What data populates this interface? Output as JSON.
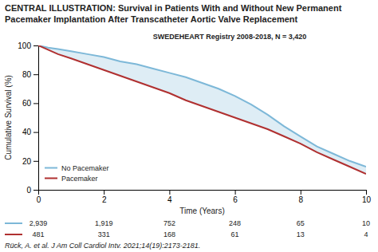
{
  "chart_data": {
    "type": "line",
    "title": "CENTRAL ILLUSTRATION: Survival in Patients With and Without New Permanent Pacemaker Implantation After Transcatheter Aortic Valve Replacement",
    "annotations": [
      "SWEDEHEART Registry 2008-2018, N = 3,420",
      "Rück, A. et al. J Am Coll Cardiol Intv. 2021;14(19):2173-2181."
    ],
    "xlabel": "Time (Years)",
    "ylabel": "Cumulative Survival (%)",
    "x": [
      0,
      0.3,
      0.6,
      1.0,
      1.5,
      2.0,
      2.5,
      3.0,
      3.5,
      4.0,
      4.5,
      5.0,
      5.5,
      6.0,
      6.5,
      7.0,
      7.5,
      8.0,
      8.5,
      9.0,
      9.5,
      10.0
    ],
    "series": [
      {
        "name": "No Pacemaker",
        "color": "#7db8d8",
        "values": [
          100,
          98.5,
          97.5,
          96,
          94,
          92,
          89,
          87,
          84,
          81,
          78,
          74,
          70,
          65,
          59,
          52,
          44,
          37,
          30,
          25,
          20,
          16
        ],
        "at_risk": [
          2939,
          1919,
          752,
          248,
          65,
          10
        ],
        "at_risk_labels": [
          "2,939",
          "1,919",
          "752",
          "248",
          "65",
          "10"
        ]
      },
      {
        "name": "Pacemaker",
        "color": "#b03030",
        "values": [
          100,
          97,
          94,
          91,
          87,
          83,
          79,
          75,
          71,
          67,
          62,
          58,
          54,
          50,
          46,
          42,
          37,
          32,
          26,
          21,
          16,
          11
        ],
        "at_risk": [
          481,
          331,
          168,
          61,
          13,
          4
        ],
        "at_risk_labels": [
          "481",
          "331",
          "168",
          "61",
          "13",
          "4"
        ]
      }
    ],
    "at_risk_times": [
      0,
      2,
      4,
      6,
      8,
      10
    ],
    "xlim": [
      0,
      10
    ],
    "ylim": [
      0,
      100
    ],
    "xticks": [
      0,
      2,
      4,
      6,
      8,
      10
    ],
    "yticks": [
      0,
      20,
      40,
      60,
      80,
      100
    ],
    "grid": false,
    "legend": "lower left"
  }
}
